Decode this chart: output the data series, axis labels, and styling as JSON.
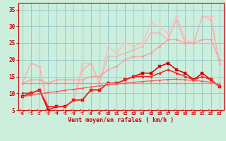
{
  "xlabel": "Vent moyen/en rafales ( km/h )",
  "xlim": [
    -0.5,
    23.5
  ],
  "ylim": [
    5,
    37
  ],
  "yticks": [
    5,
    10,
    15,
    20,
    25,
    30,
    35
  ],
  "xticks": [
    0,
    1,
    2,
    3,
    4,
    5,
    6,
    7,
    8,
    9,
    10,
    11,
    12,
    13,
    14,
    15,
    16,
    17,
    18,
    19,
    20,
    21,
    22,
    23
  ],
  "bg_color": "#cceedd",
  "grid_color": "#99cccc",
  "lines": [
    {
      "x": [
        0,
        1,
        2,
        3,
        4,
        5,
        6,
        7,
        8,
        9,
        10,
        11,
        12,
        13,
        14,
        15,
        16,
        17,
        18,
        19,
        20,
        21,
        22,
        23
      ],
      "y": [
        13,
        19,
        18,
        5,
        6,
        6,
        8,
        19,
        19,
        13,
        24,
        22,
        25,
        24,
        25,
        31,
        30,
        28,
        33,
        26,
        25,
        33,
        33,
        19
      ],
      "color": "#ffbbbb",
      "lw": 0.9,
      "marker": "D",
      "ms": 2.0
    },
    {
      "x": [
        0,
        1,
        2,
        3,
        4,
        5,
        6,
        7,
        8,
        9,
        10,
        11,
        12,
        13,
        14,
        15,
        16,
        17,
        18,
        19,
        20,
        21,
        22,
        23
      ],
      "y": [
        13,
        19,
        18,
        6,
        6,
        6,
        8,
        17,
        19,
        13,
        21,
        21,
        22,
        23,
        24,
        28,
        28,
        26,
        32,
        25,
        25,
        33,
        32,
        19
      ],
      "color": "#ffaaaa",
      "lw": 0.9,
      "marker": "^",
      "ms": 2.0
    },
    {
      "x": [
        0,
        1,
        2,
        3,
        4,
        5,
        6,
        7,
        8,
        9,
        10,
        11,
        12,
        13,
        14,
        15,
        16,
        17,
        18,
        19,
        20,
        21,
        22,
        23
      ],
      "y": [
        13,
        14,
        14,
        13,
        14,
        14,
        14,
        14,
        15,
        15,
        17,
        18,
        20,
        21,
        21,
        22,
        24,
        26,
        26,
        25,
        25,
        26,
        26,
        20
      ],
      "color": "#ff9999",
      "lw": 0.9,
      "marker": "o",
      "ms": 2.0
    },
    {
      "x": [
        0,
        1,
        2,
        3,
        4,
        5,
        6,
        7,
        8,
        9,
        10,
        11,
        12,
        13,
        14,
        15,
        16,
        17,
        18,
        19,
        20,
        21,
        22,
        23
      ],
      "y": [
        9,
        10,
        11,
        5,
        6,
        6,
        8,
        8,
        11,
        11,
        13,
        13,
        14,
        15,
        16,
        16,
        18,
        19,
        17,
        16,
        14,
        16,
        14,
        12
      ],
      "color": "#cc0000",
      "lw": 1.1,
      "marker": "s",
      "ms": 2.2
    },
    {
      "x": [
        0,
        1,
        2,
        3,
        4,
        5,
        6,
        7,
        8,
        9,
        10,
        11,
        12,
        13,
        14,
        15,
        16,
        17,
        18,
        19,
        20,
        21,
        22,
        23
      ],
      "y": [
        10,
        10,
        11,
        6,
        6,
        6,
        8,
        8,
        11,
        11,
        13,
        13,
        14,
        15,
        15,
        15,
        16,
        17,
        16,
        15,
        14,
        15,
        14,
        12
      ],
      "color": "#ff2222",
      "lw": 1.1,
      "marker": "o",
      "ms": 2.2
    },
    {
      "x": [
        0,
        1,
        2,
        3,
        4,
        5,
        6,
        7,
        8,
        9,
        10,
        11,
        12,
        13,
        14,
        15,
        16,
        17,
        18,
        19,
        20,
        21,
        22,
        23
      ],
      "y": [
        13,
        13,
        13,
        13,
        13,
        13,
        13,
        13,
        13,
        13,
        13,
        13,
        13,
        13,
        13,
        13,
        13,
        13,
        13,
        13,
        13,
        13,
        13,
        13
      ],
      "color": "#ff8888",
      "lw": 0.9,
      "marker": ">",
      "ms": 1.8
    },
    {
      "x": [
        0,
        1,
        2,
        3,
        4,
        5,
        6,
        7,
        8,
        9,
        10,
        11,
        12,
        13,
        14,
        15,
        16,
        17,
        18,
        19,
        20,
        21,
        22,
        23
      ],
      "y": [
        9.0,
        9.4,
        9.8,
        10.2,
        10.5,
        10.9,
        11.2,
        11.5,
        11.9,
        12.2,
        12.5,
        12.8,
        13.0,
        13.3,
        13.5,
        13.7,
        13.9,
        14.1,
        14.2,
        14.0,
        13.8,
        13.6,
        13.3,
        12.5
      ],
      "color": "#ff5555",
      "lw": 0.9,
      "marker": ">",
      "ms": 1.8
    }
  ],
  "arrow_color": "#ff4444",
  "axis_color": "#cc0000",
  "tick_color": "#cc0000",
  "label_color": "#cc0000"
}
